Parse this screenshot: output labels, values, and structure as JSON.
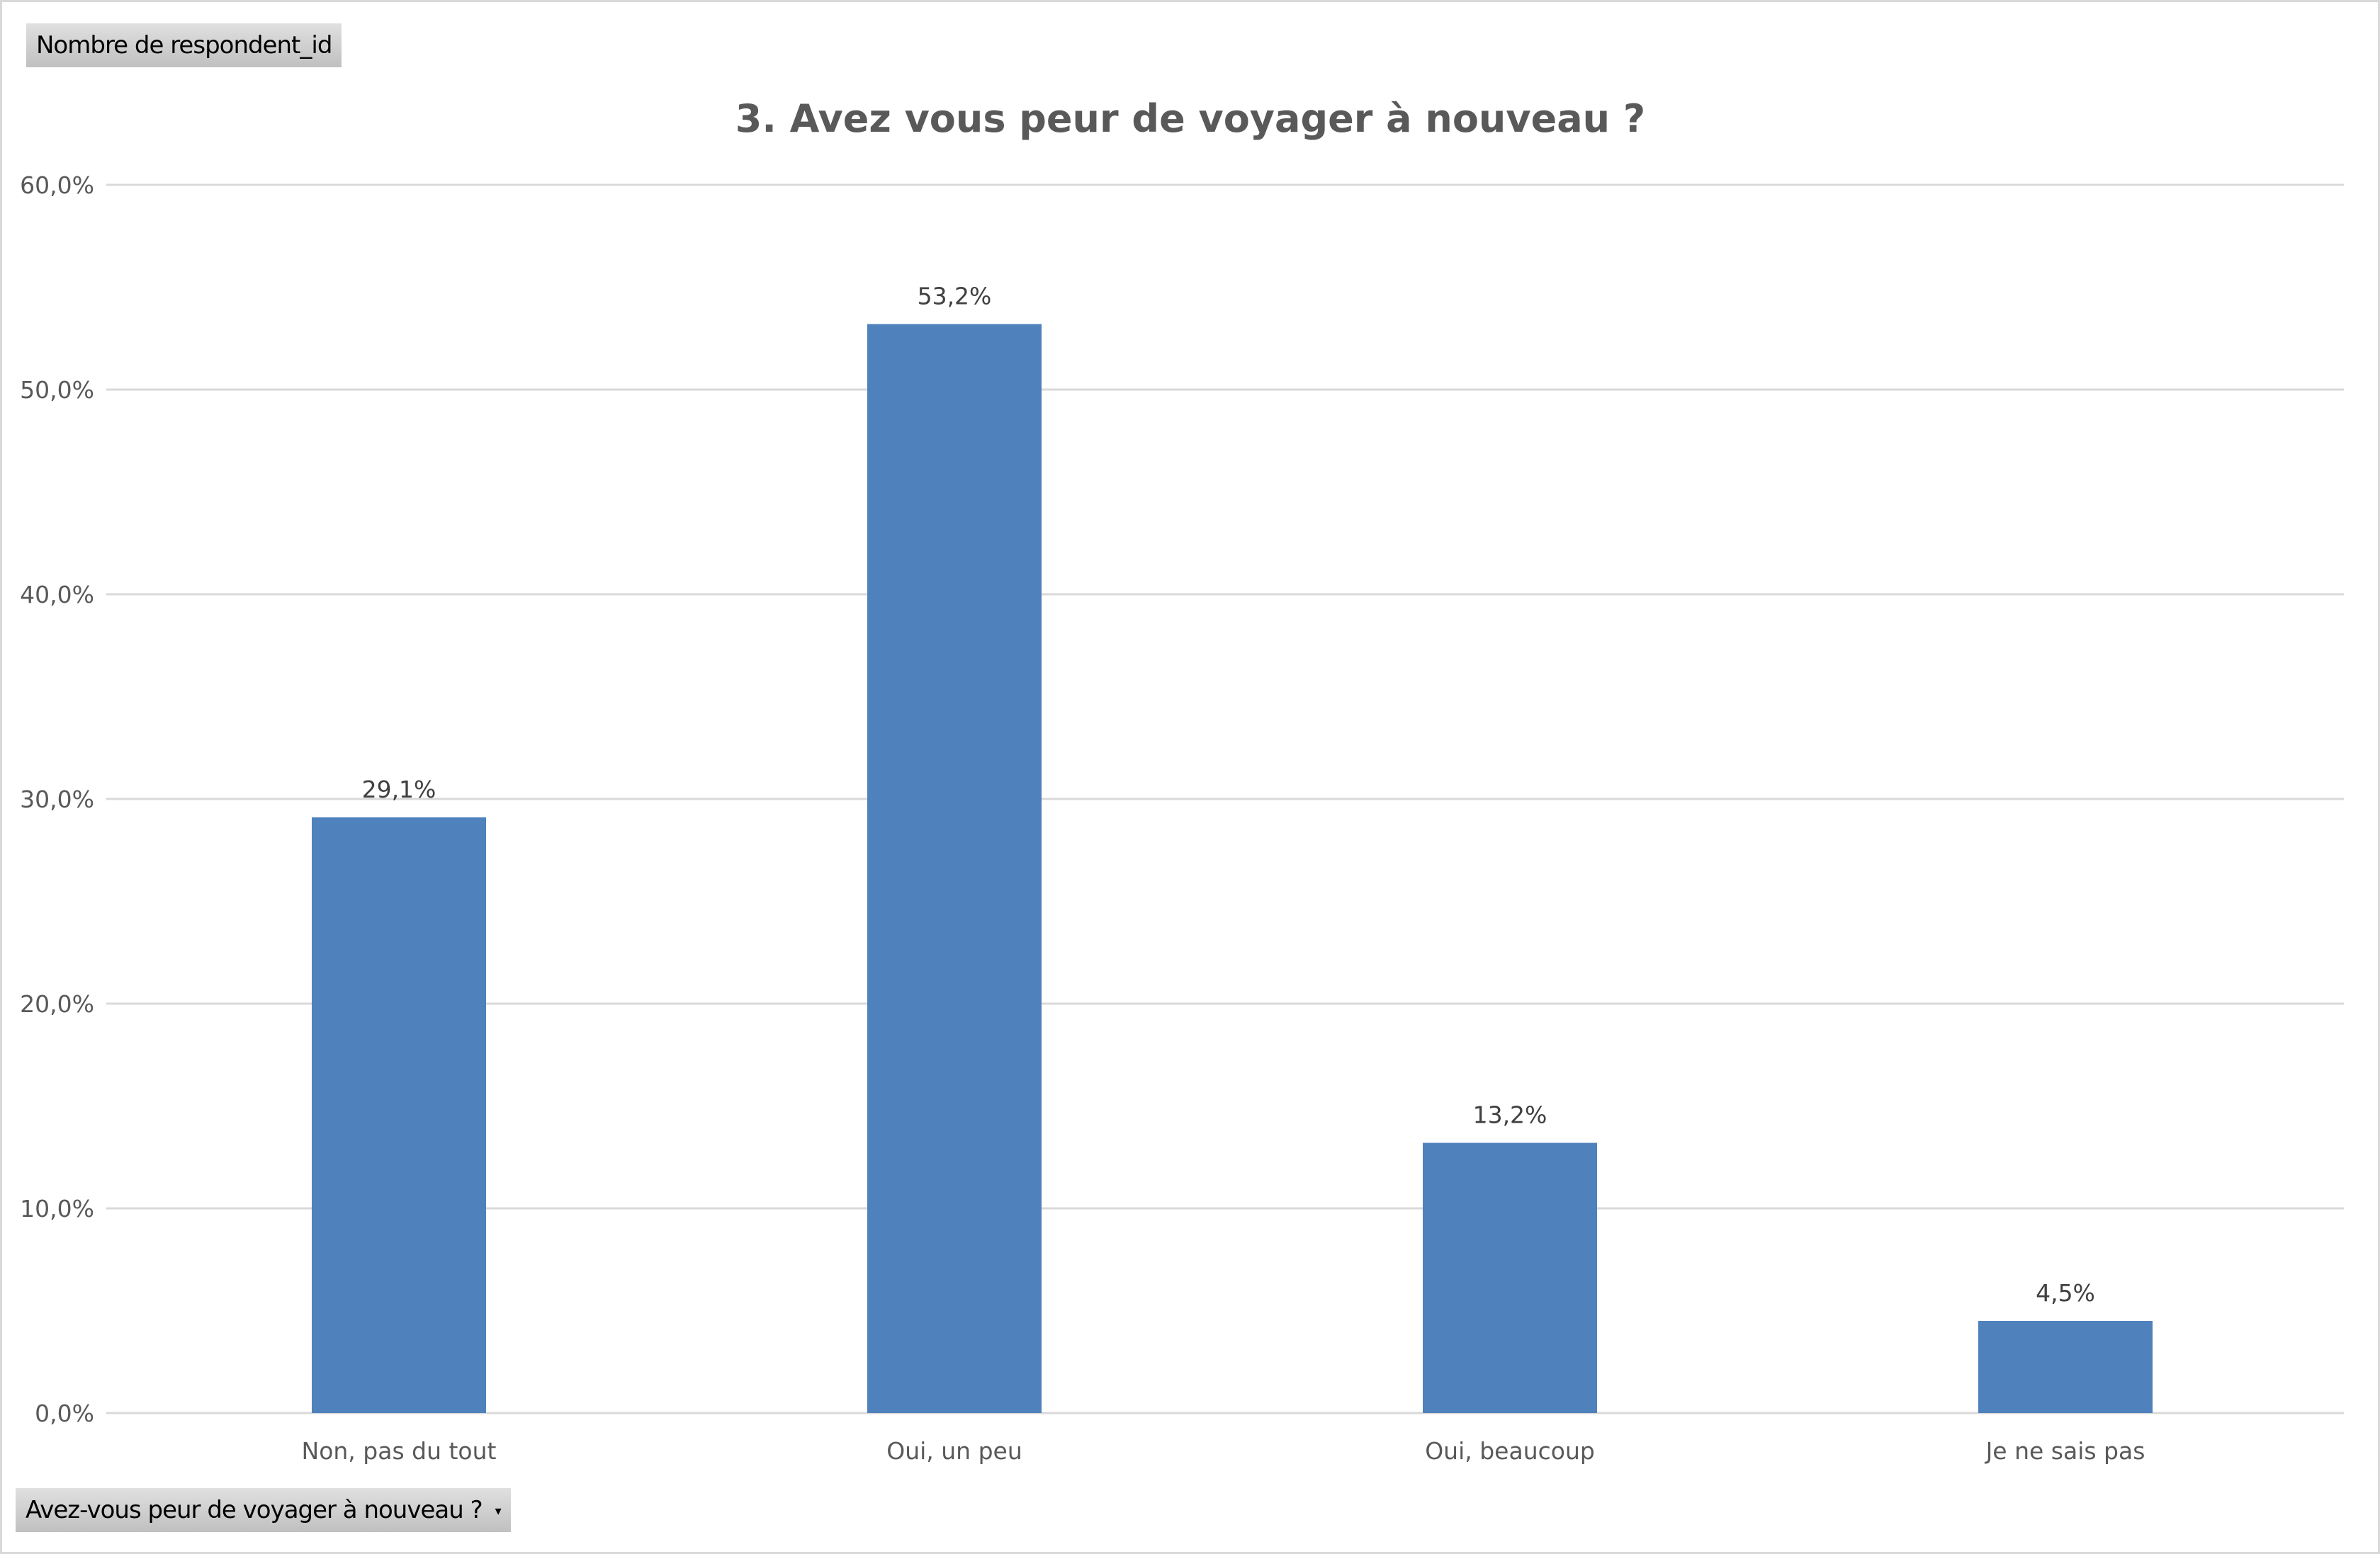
{
  "field_button": {
    "label": "Nombre de respondent_id"
  },
  "filter_button": {
    "label": "Avez-vous peur de voyager à nouveau ?",
    "icon": "dropdown-arrow-icon"
  },
  "chart_data": {
    "type": "bar",
    "title": "3. Avez vous peur de voyager à nouveau ?",
    "categories": [
      "Non, pas du tout",
      "Oui, un peu",
      "Oui, beaucoup",
      "Je ne sais pas"
    ],
    "values": [
      29.1,
      53.2,
      13.2,
      4.5
    ],
    "data_labels": [
      "29,1%",
      "53,2%",
      "13,2%",
      "4,5%"
    ],
    "yticks": [
      0,
      10,
      20,
      30,
      40,
      50,
      60
    ],
    "ytick_labels": [
      "0,0%",
      "10,0%",
      "20,0%",
      "30,0%",
      "40,0%",
      "50,0%",
      "60,0%"
    ],
    "ylim": [
      0,
      60
    ],
    "xlabel": "",
    "ylabel": "",
    "grid": true,
    "bar_color": "#4f81bd",
    "grid_color": "#d9d9d9"
  }
}
